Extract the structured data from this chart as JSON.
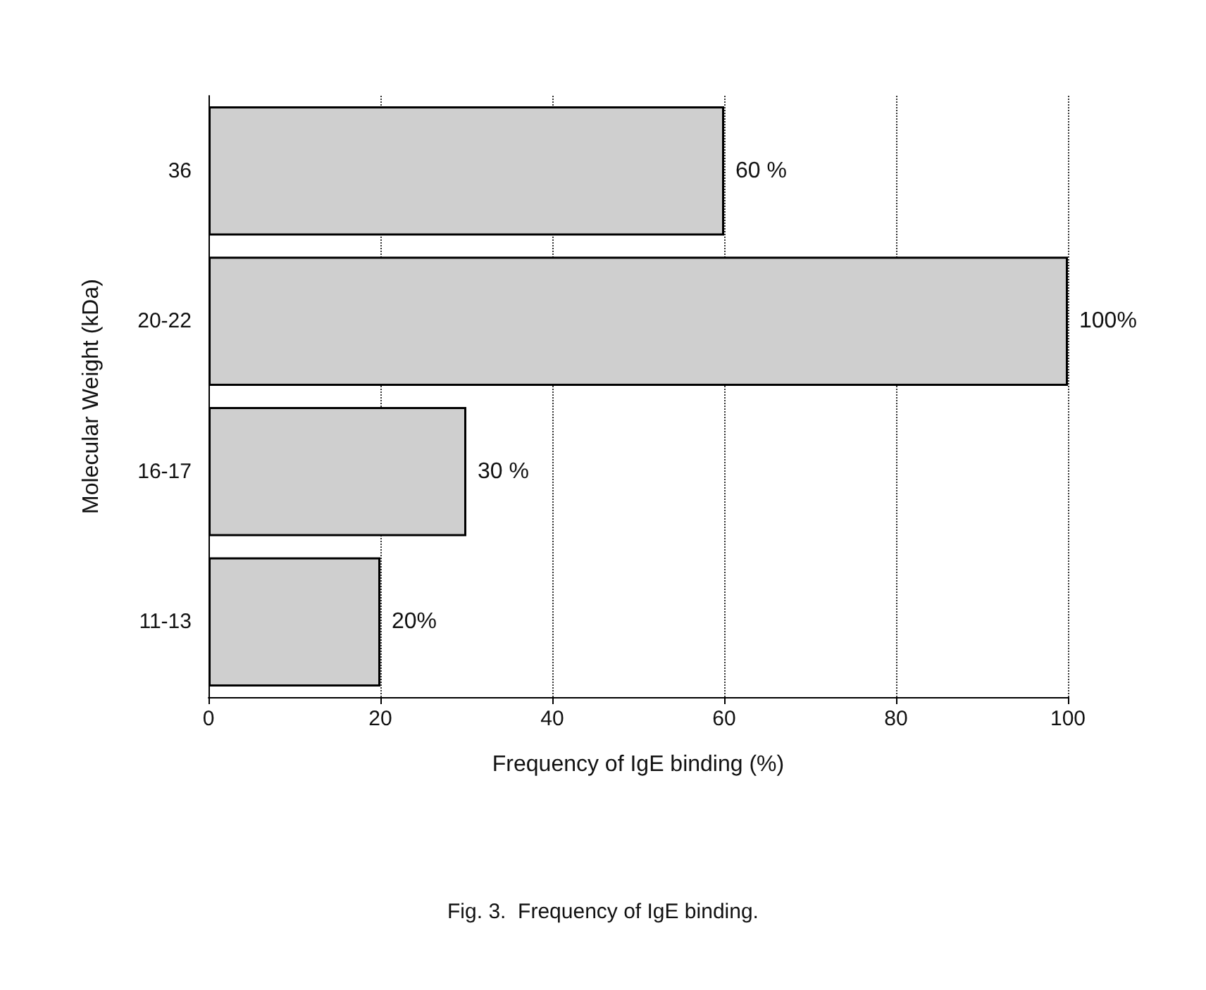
{
  "chart_data": {
    "type": "bar",
    "orientation": "horizontal",
    "xlabel": "Frequency of IgE binding (%)",
    "ylabel": "Molecular Weight (kDa)",
    "categories": [
      "36",
      "20-22",
      "16-17",
      "11-13"
    ],
    "values": [
      60,
      100,
      30,
      20
    ],
    "value_labels": [
      "60 %",
      "100%",
      "30 %",
      "20%"
    ],
    "color": "#cfcfcf",
    "xlim": [
      0,
      100
    ],
    "xticks": [
      0,
      20,
      40,
      60,
      80,
      100
    ],
    "grid": "x",
    "annotations": [
      "Fig. 3.  Frequency of IgE binding."
    ]
  }
}
